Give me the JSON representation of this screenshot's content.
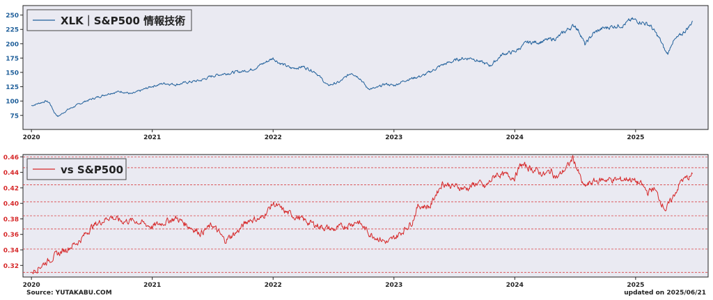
{
  "chart_data": [
    {
      "type": "line",
      "series": [
        {
          "name": "XLK｜S&P500 情報技術"
        }
      ],
      "legend_location": "top-left",
      "line_color": "#1f5f9a",
      "ylim": [
        65,
        252
      ],
      "yticks": [
        75,
        100,
        125,
        150,
        175,
        200,
        225,
        250
      ],
      "ytick_labels": [
        "75",
        "100",
        "125",
        "150",
        "175",
        "200",
        "225",
        "250"
      ],
      "xlim": [
        2019.93,
        2025.6
      ],
      "xticks": [
        2020,
        2021,
        2022,
        2023,
        2024,
        2025
      ],
      "xtick_labels": [
        "2020",
        "2021",
        "2022",
        "2023",
        "2024",
        "2025"
      ],
      "grid": false,
      "anchors": [
        [
          2020.0,
          92
        ],
        [
          2020.12,
          100
        ],
        [
          2020.15,
          97
        ],
        [
          2020.19,
          80
        ],
        [
          2020.22,
          73
        ],
        [
          2020.3,
          85
        ],
        [
          2020.45,
          100
        ],
        [
          2020.65,
          114
        ],
        [
          2020.75,
          117
        ],
        [
          2020.83,
          112
        ],
        [
          2021.0,
          126
        ],
        [
          2021.1,
          131
        ],
        [
          2021.2,
          129
        ],
        [
          2021.3,
          133
        ],
        [
          2021.4,
          136
        ],
        [
          2021.5,
          144
        ],
        [
          2021.6,
          148
        ],
        [
          2021.75,
          152
        ],
        [
          2021.82,
          155
        ],
        [
          2021.85,
          158
        ],
        [
          2021.95,
          169
        ],
        [
          2022.0,
          175
        ],
        [
          2022.05,
          167
        ],
        [
          2022.15,
          157
        ],
        [
          2022.25,
          160
        ],
        [
          2022.35,
          151
        ],
        [
          2022.45,
          127
        ],
        [
          2022.55,
          133
        ],
        [
          2022.65,
          150
        ],
        [
          2022.72,
          140
        ],
        [
          2022.78,
          122
        ],
        [
          2022.85,
          122
        ],
        [
          2022.93,
          130
        ],
        [
          2023.0,
          127
        ],
        [
          2023.1,
          137
        ],
        [
          2023.25,
          145
        ],
        [
          2023.4,
          163
        ],
        [
          2023.55,
          174
        ],
        [
          2023.65,
          175
        ],
        [
          2023.73,
          167
        ],
        [
          2023.8,
          162
        ],
        [
          2023.9,
          182
        ],
        [
          2024.0,
          186
        ],
        [
          2024.1,
          202
        ],
        [
          2024.2,
          203
        ],
        [
          2024.35,
          210
        ],
        [
          2024.45,
          227
        ],
        [
          2024.5,
          232
        ],
        [
          2024.55,
          215
        ],
        [
          2024.58,
          198
        ],
        [
          2024.65,
          218
        ],
        [
          2024.72,
          226
        ],
        [
          2024.8,
          230
        ],
        [
          2024.9,
          233
        ],
        [
          2024.97,
          242
        ],
        [
          2025.05,
          238
        ],
        [
          2025.12,
          232
        ],
        [
          2025.2,
          208
        ],
        [
          2025.25,
          185
        ],
        [
          2025.27,
          183
        ],
        [
          2025.3,
          202
        ],
        [
          2025.38,
          216
        ],
        [
          2025.45,
          232
        ],
        [
          2025.47,
          240
        ]
      ]
    },
    {
      "type": "line",
      "series": [
        {
          "name": "vs S&P500"
        }
      ],
      "legend_location": "top-left",
      "line_color": "#d62728",
      "ylim": [
        0.305,
        0.463
      ],
      "yticks": [
        0.32,
        0.34,
        0.36,
        0.38,
        0.4,
        0.42,
        0.44,
        0.46
      ],
      "ytick_labels": [
        "0.32",
        "0.34",
        "0.36",
        "0.38",
        "0.40",
        "0.42",
        "0.44",
        "0.46"
      ],
      "hlines": [
        0.311,
        0.341,
        0.367,
        0.384,
        0.402,
        0.424,
        0.446,
        0.46
      ],
      "xlim": [
        2019.93,
        2025.6
      ],
      "xticks": [
        2020,
        2021,
        2022,
        2023,
        2024,
        2025
      ],
      "xtick_labels": [
        "2020",
        "2021",
        "2022",
        "2023",
        "2024",
        "2025"
      ],
      "anchors": [
        [
          2020.0,
          0.311
        ],
        [
          2020.1,
          0.322
        ],
        [
          2020.2,
          0.333
        ],
        [
          2020.3,
          0.342
        ],
        [
          2020.4,
          0.352
        ],
        [
          2020.5,
          0.37
        ],
        [
          2020.65,
          0.383
        ],
        [
          2020.75,
          0.377
        ],
        [
          2020.85,
          0.378
        ],
        [
          2021.0,
          0.37
        ],
        [
          2021.1,
          0.376
        ],
        [
          2021.2,
          0.381
        ],
        [
          2021.3,
          0.371
        ],
        [
          2021.4,
          0.362
        ],
        [
          2021.5,
          0.372
        ],
        [
          2021.6,
          0.352
        ],
        [
          2021.7,
          0.363
        ],
        [
          2021.8,
          0.379
        ],
        [
          2021.9,
          0.38
        ],
        [
          2022.0,
          0.4
        ],
        [
          2022.1,
          0.389
        ],
        [
          2022.2,
          0.382
        ],
        [
          2022.3,
          0.375
        ],
        [
          2022.4,
          0.37
        ],
        [
          2022.5,
          0.366
        ],
        [
          2022.6,
          0.371
        ],
        [
          2022.7,
          0.377
        ],
        [
          2022.8,
          0.361
        ],
        [
          2022.9,
          0.353
        ],
        [
          2022.95,
          0.349
        ],
        [
          2023.05,
          0.361
        ],
        [
          2023.15,
          0.376
        ],
        [
          2023.2,
          0.397
        ],
        [
          2023.3,
          0.396
        ],
        [
          2023.35,
          0.413
        ],
        [
          2023.4,
          0.426
        ],
        [
          2023.5,
          0.422
        ],
        [
          2023.6,
          0.419
        ],
        [
          2023.7,
          0.427
        ],
        [
          2023.75,
          0.42
        ],
        [
          2023.85,
          0.438
        ],
        [
          2024.0,
          0.434
        ],
        [
          2024.05,
          0.45
        ],
        [
          2024.15,
          0.444
        ],
        [
          2024.25,
          0.437
        ],
        [
          2024.3,
          0.442
        ],
        [
          2024.35,
          0.433
        ],
        [
          2024.45,
          0.45
        ],
        [
          2024.48,
          0.459
        ],
        [
          2024.52,
          0.443
        ],
        [
          2024.57,
          0.421
        ],
        [
          2024.65,
          0.428
        ],
        [
          2024.75,
          0.431
        ],
        [
          2024.85,
          0.43
        ],
        [
          2024.95,
          0.432
        ],
        [
          2025.05,
          0.424
        ],
        [
          2025.1,
          0.414
        ],
        [
          2025.15,
          0.42
        ],
        [
          2025.2,
          0.405
        ],
        [
          2025.25,
          0.392
        ],
        [
          2025.3,
          0.405
        ],
        [
          2025.38,
          0.43
        ],
        [
          2025.45,
          0.434
        ],
        [
          2025.47,
          0.438
        ]
      ]
    }
  ],
  "footer": {
    "source": "Source: YUTAKABU.COM",
    "updated": "updated on 2025/06/21"
  }
}
